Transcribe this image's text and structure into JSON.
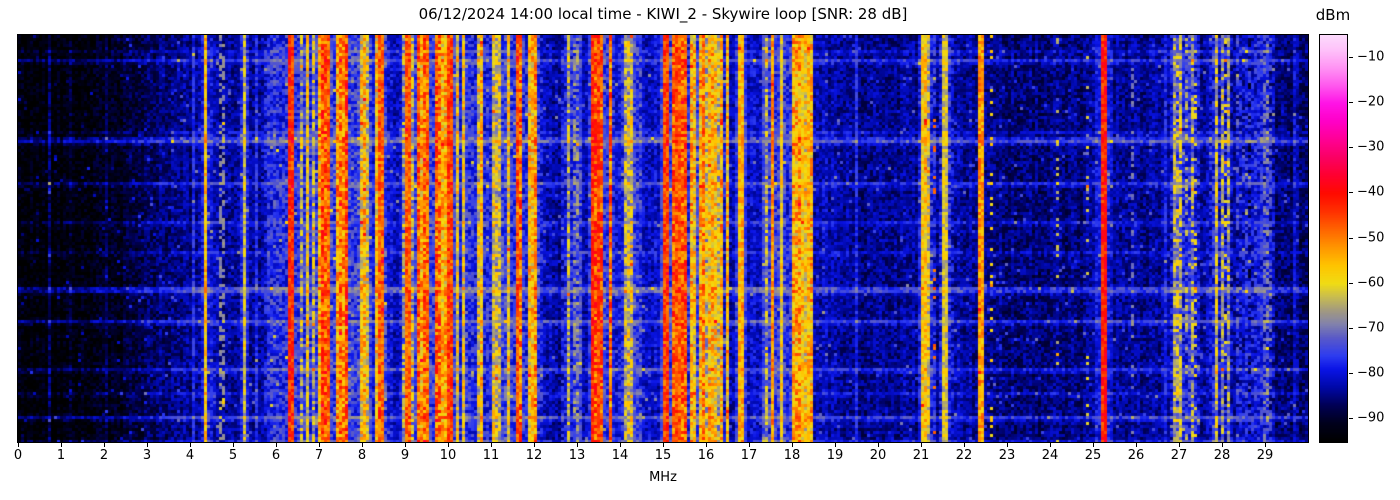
{
  "chart_data": {
    "type": "heatmap",
    "title": "06/12/2024 14:00 local time - KIWI_2 - Skywire loop [SNR: 28 dB]",
    "xlabel": "MHz",
    "x_range": [
      0,
      30
    ],
    "x_ticks": [
      0,
      1,
      2,
      3,
      4,
      5,
      6,
      7,
      8,
      9,
      10,
      11,
      12,
      13,
      14,
      15,
      16,
      17,
      18,
      19,
      20,
      21,
      22,
      23,
      24,
      25,
      26,
      27,
      28,
      29
    ],
    "y_axis_ticks": "none (time axis, unlabeled)",
    "grid": false,
    "colorbar": {
      "label": "dBm",
      "range": {
        "min": -95,
        "max": -5
      },
      "ticks": [
        -10,
        -20,
        -30,
        -40,
        -50,
        -60,
        -70,
        -80,
        -90
      ],
      "stops": [
        [
          -95,
          "#000000"
        ],
        [
          -91,
          "#00001c"
        ],
        [
          -87,
          "#000054"
        ],
        [
          -83,
          "#0008a8"
        ],
        [
          -79,
          "#0a14e6"
        ],
        [
          -76,
          "#2e3cf0"
        ],
        [
          -72,
          "#5a5ac8"
        ],
        [
          -69,
          "#8282ac"
        ],
        [
          -66,
          "#a29a80"
        ],
        [
          -63,
          "#c8bc50"
        ],
        [
          -60,
          "#f0dc14"
        ],
        [
          -56,
          "#ffc400"
        ],
        [
          -52,
          "#ff9600"
        ],
        [
          -48,
          "#ff6400"
        ],
        [
          -44,
          "#ff3000"
        ],
        [
          -40,
          "#ff0a00"
        ],
        [
          -36,
          "#ff0030"
        ],
        [
          -32,
          "#fa0064"
        ],
        [
          -28,
          "#ff0096"
        ],
        [
          -24,
          "#ff00c8"
        ],
        [
          -20,
          "#ff14e6"
        ],
        [
          -16,
          "#ff5aee"
        ],
        [
          -12,
          "#ff96f4"
        ],
        [
          -8,
          "#fec4fa"
        ],
        [
          -5,
          "#fcdafc"
        ]
      ]
    },
    "spectrum": {
      "comment": "noise-floor profile [MHz, dBm] and signal bands/carriers read from the waterfall",
      "background": [
        [
          0,
          -94
        ],
        [
          1.2,
          -93.5
        ],
        [
          2.2,
          -92
        ],
        [
          2.8,
          -89
        ],
        [
          3.2,
          -86
        ],
        [
          3.8,
          -84.5
        ],
        [
          4.3,
          -84
        ],
        [
          5.0,
          -83.5
        ],
        [
          5.6,
          -83
        ],
        [
          6.1,
          -82
        ],
        [
          6.6,
          -81
        ],
        [
          7.2,
          -80
        ],
        [
          8.0,
          -80.5
        ],
        [
          8.8,
          -80.5
        ],
        [
          9.6,
          -80
        ],
        [
          10.5,
          -80.5
        ],
        [
          11.4,
          -81
        ],
        [
          12.1,
          -82
        ],
        [
          12.7,
          -83.5
        ],
        [
          13.2,
          -82
        ],
        [
          14.2,
          -80.5
        ],
        [
          14.8,
          -80.5
        ],
        [
          15.8,
          -80
        ],
        [
          16.6,
          -82
        ],
        [
          17.3,
          -81
        ],
        [
          18.1,
          -81
        ],
        [
          18.8,
          -82.5
        ],
        [
          19.6,
          -84
        ],
        [
          20.5,
          -84.5
        ],
        [
          21.8,
          -83
        ],
        [
          22.6,
          -84.5
        ],
        [
          23.5,
          -85.5
        ],
        [
          24.5,
          -85
        ],
        [
          25.6,
          -84
        ],
        [
          26.4,
          -84
        ],
        [
          27.1,
          -82.5
        ],
        [
          28.0,
          -83.5
        ],
        [
          28.8,
          -84.5
        ],
        [
          29.5,
          -86
        ],
        [
          30,
          -87
        ]
      ],
      "bands": [
        [
          5.75,
          6.25,
          -68,
          0.35
        ],
        [
          6.3,
          6.5,
          -55,
          0.6
        ],
        [
          6.5,
          7.0,
          -62,
          0.45
        ],
        [
          7.0,
          7.65,
          -50,
          0.75
        ],
        [
          7.65,
          8.25,
          -60,
          0.45
        ],
        [
          8.3,
          8.6,
          -55,
          0.5
        ],
        [
          8.9,
          9.3,
          -64,
          0.4
        ],
        [
          9.3,
          9.95,
          -52,
          0.7
        ],
        [
          9.95,
          10.25,
          -57,
          0.6
        ],
        [
          10.3,
          11.1,
          -60,
          0.45
        ],
        [
          11.1,
          11.5,
          -64,
          0.35
        ],
        [
          11.5,
          12.2,
          -53,
          0.65
        ],
        [
          12.6,
          13.1,
          -68,
          0.25
        ],
        [
          13.3,
          13.9,
          -47,
          0.8
        ],
        [
          14.0,
          14.5,
          -63,
          0.4
        ],
        [
          15.0,
          15.55,
          -48,
          0.8
        ],
        [
          15.55,
          15.95,
          -56,
          0.55
        ],
        [
          16.0,
          16.5,
          -60,
          0.4
        ],
        [
          17.4,
          18.0,
          -63,
          0.35
        ],
        [
          18.0,
          18.5,
          -58,
          0.5
        ],
        [
          21.0,
          21.35,
          -60,
          0.45
        ],
        [
          21.4,
          21.75,
          -66,
          0.3
        ],
        [
          26.8,
          27.5,
          -70,
          0.5
        ],
        [
          27.7,
          28.25,
          -68,
          0.35
        ],
        [
          28.3,
          29.2,
          -79,
          0.35
        ]
      ],
      "carriers": [
        [
          4.35,
          -57,
          0.05
        ],
        [
          5.28,
          -63,
          0.04
        ],
        [
          6.37,
          -44,
          0.06
        ],
        [
          7.21,
          -48,
          0.05
        ],
        [
          8.44,
          -47,
          0.05
        ],
        [
          9.07,
          -48,
          0.04
        ],
        [
          9.53,
          -50,
          0.05
        ],
        [
          10.05,
          -46,
          0.05
        ],
        [
          11.6,
          -48,
          0.05
        ],
        [
          13.35,
          -46,
          0.04
        ],
        [
          13.52,
          -45,
          0.04
        ],
        [
          15.08,
          -45,
          0.05
        ],
        [
          15.35,
          -46,
          0.04
        ],
        [
          16.8,
          -56,
          0.05
        ],
        [
          17.56,
          -51,
          0.04
        ],
        [
          17.77,
          -58,
          0.04
        ],
        [
          18.26,
          -58,
          0.04
        ],
        [
          18.37,
          -56,
          0.04
        ],
        [
          21.07,
          -58,
          0.06
        ],
        [
          21.55,
          -61,
          0.06
        ],
        [
          22.4,
          -53,
          0.04
        ],
        [
          25.23,
          -42,
          0.07
        ]
      ],
      "dotted": [
        [
          4.74,
          -68,
          0.04,
          0.5
        ],
        [
          21.3,
          -48,
          0.05,
          0.12
        ],
        [
          22.65,
          -58,
          0.05,
          0.2
        ],
        [
          24.15,
          -64,
          0.04,
          0.18
        ],
        [
          24.86,
          -62,
          0.04,
          0.18
        ],
        [
          25.9,
          -70,
          0.04,
          0.3
        ],
        [
          27.0,
          -58,
          0.05,
          0.25
        ],
        [
          27.2,
          -64,
          0.04,
          0.3
        ],
        [
          27.35,
          -60,
          0.05,
          0.22
        ],
        [
          27.9,
          -58,
          0.04,
          0.25
        ],
        [
          28.1,
          -60,
          0.04,
          0.2
        ],
        [
          29.0,
          -72,
          0.04,
          0.3
        ]
      ],
      "streak_count": 16,
      "seed": 42
    }
  }
}
